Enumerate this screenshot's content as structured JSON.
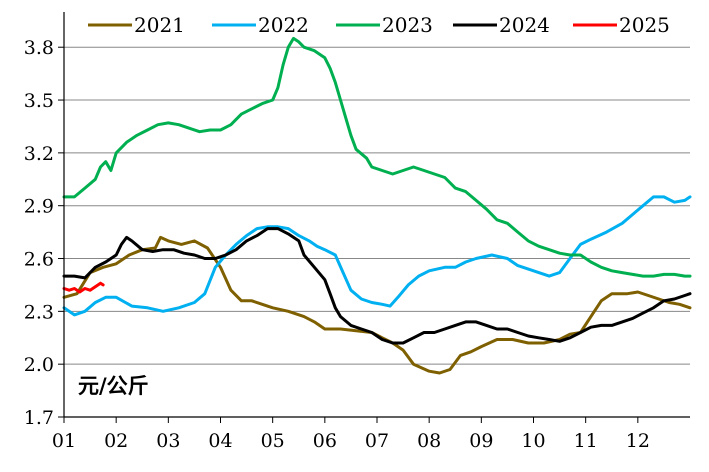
{
  "chart_data": {
    "type": "line",
    "title": "",
    "unit_label": "元/公斤",
    "xlabel": "",
    "ylabel": "",
    "x_categories": [
      "01",
      "02",
      "03",
      "04",
      "05",
      "06",
      "07",
      "08",
      "09",
      "10",
      "11",
      "12"
    ],
    "ylim": [
      1.7,
      4.0
    ],
    "yticks": [
      "1.7",
      "2.0",
      "2.3",
      "2.6",
      "2.9",
      "3.2",
      "3.5",
      "3.8"
    ],
    "grid": "horizontal",
    "legend_position": "top",
    "series": [
      {
        "name": "2021",
        "color": "#7f6000",
        "points": [
          [
            0.0,
            2.38
          ],
          [
            0.25,
            2.4
          ],
          [
            0.5,
            2.52
          ],
          [
            0.75,
            2.55
          ],
          [
            1.0,
            2.57
          ],
          [
            1.25,
            2.62
          ],
          [
            1.5,
            2.65
          ],
          [
            1.75,
            2.66
          ],
          [
            1.85,
            2.72
          ],
          [
            2.0,
            2.7
          ],
          [
            2.25,
            2.68
          ],
          [
            2.5,
            2.7
          ],
          [
            2.75,
            2.66
          ],
          [
            3.0,
            2.55
          ],
          [
            3.2,
            2.42
          ],
          [
            3.4,
            2.36
          ],
          [
            3.6,
            2.36
          ],
          [
            3.8,
            2.34
          ],
          [
            4.0,
            2.32
          ],
          [
            4.3,
            2.3
          ],
          [
            4.6,
            2.27
          ],
          [
            4.8,
            2.24
          ],
          [
            5.0,
            2.2
          ],
          [
            5.3,
            2.2
          ],
          [
            5.6,
            2.19
          ],
          [
            5.9,
            2.18
          ],
          [
            6.1,
            2.15
          ],
          [
            6.3,
            2.12
          ],
          [
            6.5,
            2.08
          ],
          [
            6.7,
            2.0
          ],
          [
            7.0,
            1.96
          ],
          [
            7.2,
            1.95
          ],
          [
            7.4,
            1.97
          ],
          [
            7.6,
            2.05
          ],
          [
            7.8,
            2.07
          ],
          [
            8.0,
            2.1
          ],
          [
            8.3,
            2.14
          ],
          [
            8.6,
            2.14
          ],
          [
            8.9,
            2.12
          ],
          [
            9.2,
            2.12
          ],
          [
            9.5,
            2.14
          ],
          [
            9.7,
            2.17
          ],
          [
            9.9,
            2.18
          ],
          [
            10.1,
            2.27
          ],
          [
            10.3,
            2.36
          ],
          [
            10.5,
            2.4
          ],
          [
            10.8,
            2.4
          ],
          [
            11.0,
            2.41
          ],
          [
            11.2,
            2.39
          ],
          [
            11.4,
            2.37
          ],
          [
            11.6,
            2.35
          ],
          [
            11.8,
            2.34
          ],
          [
            12.0,
            2.32
          ]
        ]
      },
      {
        "name": "2022",
        "color": "#00b0f0",
        "points": [
          [
            0.0,
            2.32
          ],
          [
            0.2,
            2.28
          ],
          [
            0.4,
            2.3
          ],
          [
            0.6,
            2.35
          ],
          [
            0.8,
            2.38
          ],
          [
            1.0,
            2.38
          ],
          [
            1.3,
            2.33
          ],
          [
            1.6,
            2.32
          ],
          [
            1.9,
            2.3
          ],
          [
            2.2,
            2.32
          ],
          [
            2.5,
            2.35
          ],
          [
            2.7,
            2.4
          ],
          [
            2.9,
            2.55
          ],
          [
            3.1,
            2.62
          ],
          [
            3.3,
            2.68
          ],
          [
            3.5,
            2.73
          ],
          [
            3.7,
            2.77
          ],
          [
            3.9,
            2.78
          ],
          [
            4.1,
            2.78
          ],
          [
            4.3,
            2.77
          ],
          [
            4.5,
            2.73
          ],
          [
            4.7,
            2.7
          ],
          [
            4.85,
            2.67
          ],
          [
            5.0,
            2.65
          ],
          [
            5.2,
            2.62
          ],
          [
            5.35,
            2.52
          ],
          [
            5.5,
            2.42
          ],
          [
            5.7,
            2.37
          ],
          [
            5.9,
            2.35
          ],
          [
            6.1,
            2.34
          ],
          [
            6.25,
            2.33
          ],
          [
            6.4,
            2.38
          ],
          [
            6.6,
            2.45
          ],
          [
            6.8,
            2.5
          ],
          [
            7.0,
            2.53
          ],
          [
            7.3,
            2.55
          ],
          [
            7.5,
            2.55
          ],
          [
            7.7,
            2.58
          ],
          [
            7.9,
            2.6
          ],
          [
            8.2,
            2.62
          ],
          [
            8.5,
            2.6
          ],
          [
            8.7,
            2.56
          ],
          [
            8.9,
            2.54
          ],
          [
            9.1,
            2.52
          ],
          [
            9.3,
            2.5
          ],
          [
            9.5,
            2.52
          ],
          [
            9.7,
            2.6
          ],
          [
            9.9,
            2.68
          ],
          [
            10.1,
            2.71
          ],
          [
            10.4,
            2.75
          ],
          [
            10.7,
            2.8
          ],
          [
            10.9,
            2.85
          ],
          [
            11.1,
            2.9
          ],
          [
            11.3,
            2.95
          ],
          [
            11.5,
            2.95
          ],
          [
            11.7,
            2.92
          ],
          [
            11.9,
            2.93
          ],
          [
            12.0,
            2.95
          ]
        ]
      },
      {
        "name": "2023",
        "color": "#00b050",
        "points": [
          [
            0.0,
            2.95
          ],
          [
            0.2,
            2.95
          ],
          [
            0.4,
            3.0
          ],
          [
            0.6,
            3.05
          ],
          [
            0.7,
            3.12
          ],
          [
            0.8,
            3.15
          ],
          [
            0.9,
            3.1
          ],
          [
            1.0,
            3.2
          ],
          [
            1.2,
            3.26
          ],
          [
            1.4,
            3.3
          ],
          [
            1.6,
            3.33
          ],
          [
            1.8,
            3.36
          ],
          [
            2.0,
            3.37
          ],
          [
            2.2,
            3.36
          ],
          [
            2.4,
            3.34
          ],
          [
            2.6,
            3.32
          ],
          [
            2.8,
            3.33
          ],
          [
            3.0,
            3.33
          ],
          [
            3.2,
            3.36
          ],
          [
            3.4,
            3.42
          ],
          [
            3.6,
            3.45
          ],
          [
            3.8,
            3.48
          ],
          [
            4.0,
            3.5
          ],
          [
            4.1,
            3.57
          ],
          [
            4.2,
            3.7
          ],
          [
            4.3,
            3.8
          ],
          [
            4.4,
            3.85
          ],
          [
            4.5,
            3.83
          ],
          [
            4.6,
            3.8
          ],
          [
            4.8,
            3.78
          ],
          [
            5.0,
            3.74
          ],
          [
            5.1,
            3.68
          ],
          [
            5.2,
            3.6
          ],
          [
            5.3,
            3.5
          ],
          [
            5.4,
            3.4
          ],
          [
            5.5,
            3.3
          ],
          [
            5.6,
            3.22
          ],
          [
            5.8,
            3.17
          ],
          [
            5.9,
            3.12
          ],
          [
            6.1,
            3.1
          ],
          [
            6.3,
            3.08
          ],
          [
            6.5,
            3.1
          ],
          [
            6.7,
            3.12
          ],
          [
            6.9,
            3.1
          ],
          [
            7.1,
            3.08
          ],
          [
            7.3,
            3.06
          ],
          [
            7.5,
            3.0
          ],
          [
            7.7,
            2.98
          ],
          [
            7.9,
            2.93
          ],
          [
            8.1,
            2.88
          ],
          [
            8.3,
            2.82
          ],
          [
            8.5,
            2.8
          ],
          [
            8.7,
            2.75
          ],
          [
            8.9,
            2.7
          ],
          [
            9.1,
            2.67
          ],
          [
            9.3,
            2.65
          ],
          [
            9.5,
            2.63
          ],
          [
            9.7,
            2.62
          ],
          [
            9.9,
            2.62
          ],
          [
            10.1,
            2.58
          ],
          [
            10.3,
            2.55
          ],
          [
            10.5,
            2.53
          ],
          [
            10.7,
            2.52
          ],
          [
            10.9,
            2.51
          ],
          [
            11.1,
            2.5
          ],
          [
            11.3,
            2.5
          ],
          [
            11.5,
            2.51
          ],
          [
            11.7,
            2.51
          ],
          [
            11.9,
            2.5
          ],
          [
            12.0,
            2.5
          ]
        ]
      },
      {
        "name": "2024",
        "color": "#000000",
        "points": [
          [
            0.0,
            2.5
          ],
          [
            0.2,
            2.5
          ],
          [
            0.4,
            2.49
          ],
          [
            0.6,
            2.55
          ],
          [
            0.8,
            2.58
          ],
          [
            1.0,
            2.62
          ],
          [
            1.1,
            2.68
          ],
          [
            1.2,
            2.72
          ],
          [
            1.3,
            2.7
          ],
          [
            1.5,
            2.65
          ],
          [
            1.7,
            2.64
          ],
          [
            1.9,
            2.65
          ],
          [
            2.1,
            2.65
          ],
          [
            2.3,
            2.63
          ],
          [
            2.5,
            2.62
          ],
          [
            2.7,
            2.6
          ],
          [
            2.9,
            2.6
          ],
          [
            3.1,
            2.62
          ],
          [
            3.3,
            2.65
          ],
          [
            3.5,
            2.7
          ],
          [
            3.7,
            2.73
          ],
          [
            3.9,
            2.77
          ],
          [
            4.1,
            2.77
          ],
          [
            4.3,
            2.74
          ],
          [
            4.5,
            2.7
          ],
          [
            4.6,
            2.62
          ],
          [
            4.8,
            2.55
          ],
          [
            5.0,
            2.48
          ],
          [
            5.1,
            2.4
          ],
          [
            5.2,
            2.32
          ],
          [
            5.3,
            2.27
          ],
          [
            5.5,
            2.22
          ],
          [
            5.7,
            2.2
          ],
          [
            5.9,
            2.18
          ],
          [
            6.1,
            2.14
          ],
          [
            6.3,
            2.12
          ],
          [
            6.5,
            2.12
          ],
          [
            6.7,
            2.15
          ],
          [
            6.9,
            2.18
          ],
          [
            7.1,
            2.18
          ],
          [
            7.3,
            2.2
          ],
          [
            7.5,
            2.22
          ],
          [
            7.7,
            2.24
          ],
          [
            7.9,
            2.24
          ],
          [
            8.1,
            2.22
          ],
          [
            8.3,
            2.2
          ],
          [
            8.5,
            2.2
          ],
          [
            8.7,
            2.18
          ],
          [
            8.9,
            2.16
          ],
          [
            9.1,
            2.15
          ],
          [
            9.3,
            2.14
          ],
          [
            9.5,
            2.13
          ],
          [
            9.7,
            2.15
          ],
          [
            9.9,
            2.18
          ],
          [
            10.1,
            2.21
          ],
          [
            10.3,
            2.22
          ],
          [
            10.5,
            2.22
          ],
          [
            10.7,
            2.24
          ],
          [
            10.9,
            2.26
          ],
          [
            11.1,
            2.29
          ],
          [
            11.3,
            2.32
          ],
          [
            11.5,
            2.36
          ],
          [
            11.7,
            2.37
          ],
          [
            11.9,
            2.39
          ],
          [
            12.0,
            2.4
          ]
        ]
      },
      {
        "name": "2025",
        "color": "#ff0000",
        "points": [
          [
            0.0,
            2.43
          ],
          [
            0.1,
            2.42
          ],
          [
            0.2,
            2.43
          ],
          [
            0.3,
            2.41
          ],
          [
            0.4,
            2.43
          ],
          [
            0.5,
            2.42
          ],
          [
            0.6,
            2.44
          ],
          [
            0.7,
            2.46
          ],
          [
            0.75,
            2.45
          ]
        ]
      }
    ]
  }
}
